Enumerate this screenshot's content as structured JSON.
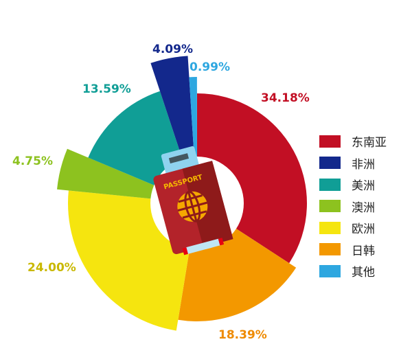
{
  "chart_data": {
    "type": "pie",
    "variant": "rose",
    "start": "12 o'clock, clockwise",
    "legend_position": "right",
    "slices": [
      {
        "name": "东南亚",
        "value": 34.18,
        "label": "34.18%",
        "color": "#c20f24"
      },
      {
        "name": "日韩",
        "value": 18.39,
        "label": "18.39%",
        "color": "#f39800"
      },
      {
        "name": "欧洲",
        "value": 24.0,
        "label": "24.00%",
        "color": "#f5e50f"
      },
      {
        "name": "澳洲",
        "value": 4.75,
        "label": "4.75%",
        "color": "#8dc21f"
      },
      {
        "name": "美洲",
        "value": 13.59,
        "label": "13.59%",
        "color": "#109e96"
      },
      {
        "name": "非洲",
        "value": 4.09,
        "label": "4.09%",
        "color": "#13288c"
      },
      {
        "name": "其他",
        "value": 0.99,
        "label": "0.99%",
        "color": "#2ea7e0"
      }
    ],
    "legend": [
      "东南亚",
      "非洲",
      "美洲",
      "澳洲",
      "欧洲",
      "日韩",
      "其他"
    ]
  },
  "illustration": {
    "passport_text": "PASSPORT"
  }
}
